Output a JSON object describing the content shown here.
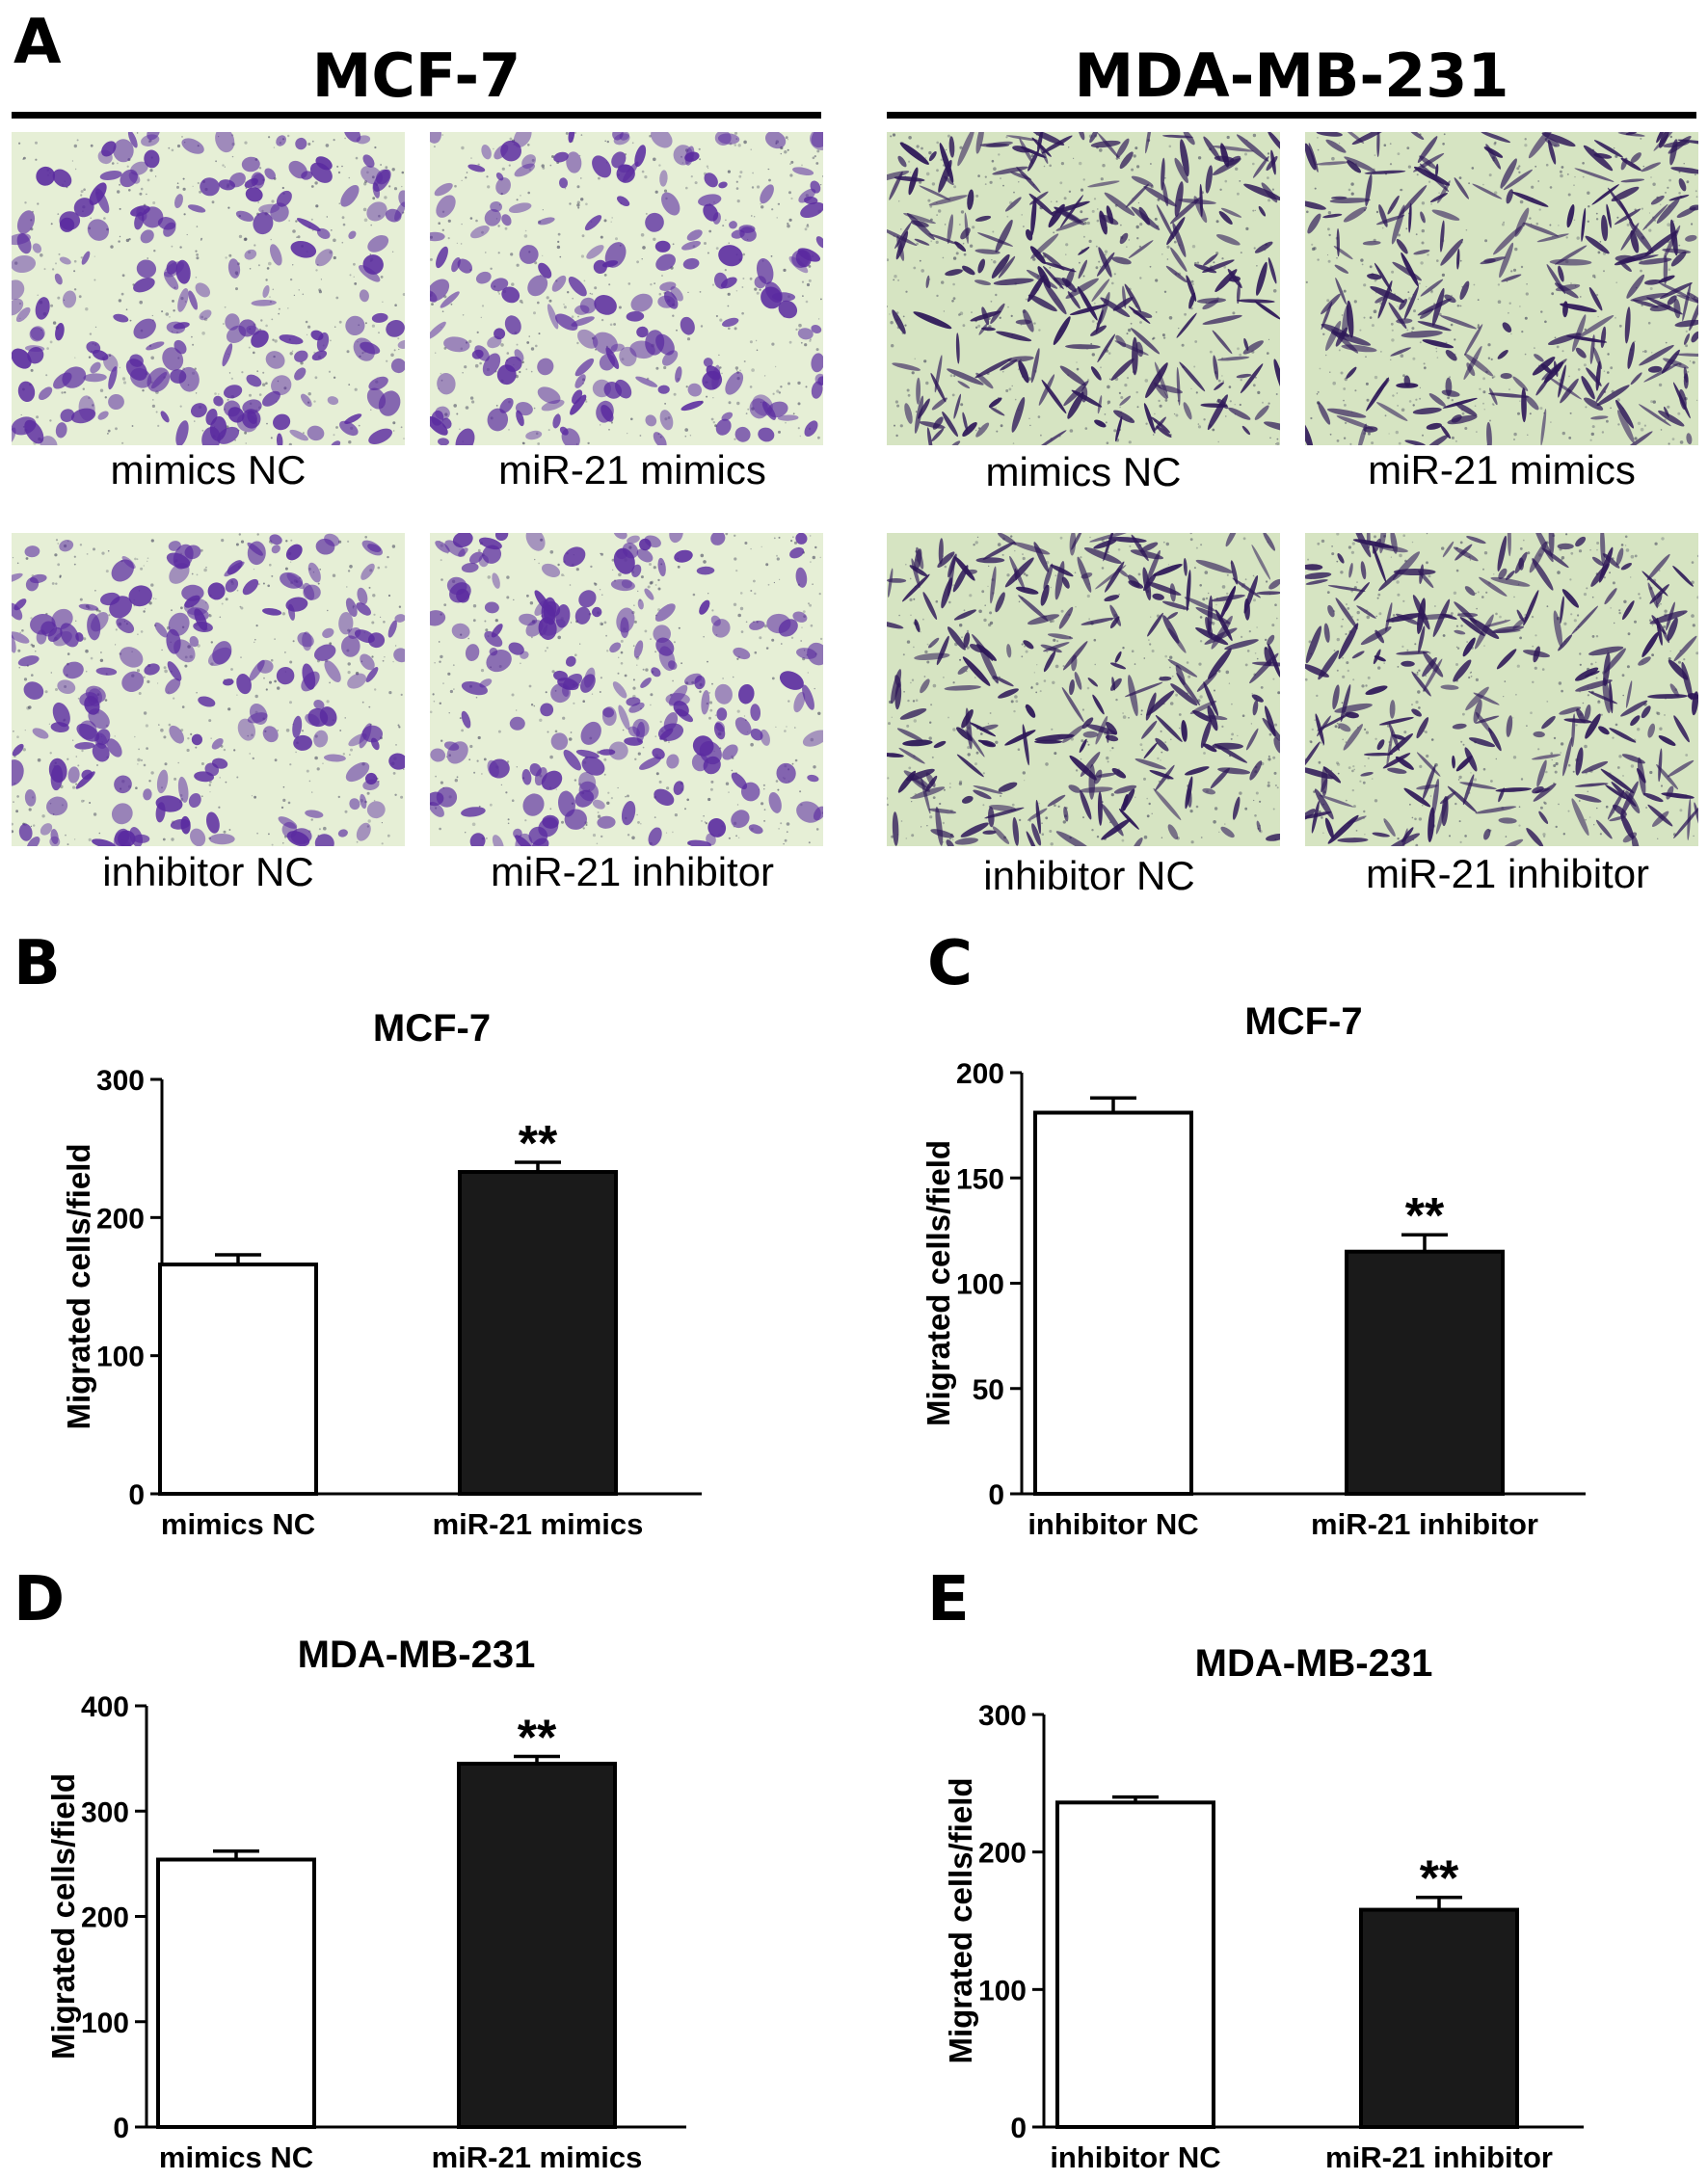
{
  "figure": {
    "panel_A": {
      "letter": "A",
      "columns": [
        {
          "title": "MCF-7",
          "cell_color": "#5a2aa0",
          "background_color": "#e6efd6",
          "images": [
            {
              "label": "mimics NC"
            },
            {
              "label": "miR-21 mimics"
            },
            {
              "label": "inhibitor NC"
            },
            {
              "label": "miR-21 inhibitor"
            }
          ]
        },
        {
          "title": "MDA-MB-231",
          "cell_color": "#2e1858",
          "background_color": "#d6e4c2",
          "images": [
            {
              "label": "mimics NC"
            },
            {
              "label": "miR-21 mimics"
            },
            {
              "label": "inhibitor NC"
            },
            {
              "label": "miR-21 inhibitor"
            }
          ]
        }
      ]
    },
    "bar_colors": {
      "control": "#ffffff",
      "treatment": "#1a1a1a",
      "stroke": "#000000"
    }
  },
  "chart_data": [
    {
      "panel": "B",
      "type": "bar",
      "title": "MCF-7",
      "ylabel": "Migrated cells/field",
      "categories": [
        "mimics NC",
        "miR-21 mimics"
      ],
      "values": [
        166,
        233
      ],
      "errors": [
        7,
        7
      ],
      "significance": [
        "",
        "**"
      ],
      "ylim": [
        0,
        300
      ],
      "yticks": [
        0,
        100,
        200,
        300
      ]
    },
    {
      "panel": "C",
      "type": "bar",
      "title": "MCF-7",
      "ylabel": "Migrated cells/field",
      "categories": [
        "inhibitor NC",
        "miR-21 inhibitor"
      ],
      "values": [
        181,
        115
      ],
      "errors": [
        7,
        8
      ],
      "significance": [
        "",
        "**"
      ],
      "ylim": [
        0,
        200
      ],
      "yticks": [
        0,
        50,
        100,
        150,
        200
      ]
    },
    {
      "panel": "D",
      "type": "bar",
      "title": "MDA-MB-231",
      "ylabel": "Migrated cells/field",
      "categories": [
        "mimics NC",
        "miR-21 mimics"
      ],
      "values": [
        254,
        345
      ],
      "errors": [
        8,
        7
      ],
      "significance": [
        "",
        "**"
      ],
      "ylim": [
        0,
        400
      ],
      "yticks": [
        0,
        100,
        200,
        300,
        400
      ]
    },
    {
      "panel": "E",
      "type": "bar",
      "title": "MDA-MB-231",
      "ylabel": "Migrated cells/field",
      "categories": [
        "inhibitor NC",
        "miR-21 inhibitor"
      ],
      "values": [
        236,
        158
      ],
      "errors": [
        4,
        9
      ],
      "significance": [
        "",
        "**"
      ],
      "ylim": [
        0,
        300
      ],
      "yticks": [
        0,
        100,
        200,
        300
      ]
    }
  ]
}
